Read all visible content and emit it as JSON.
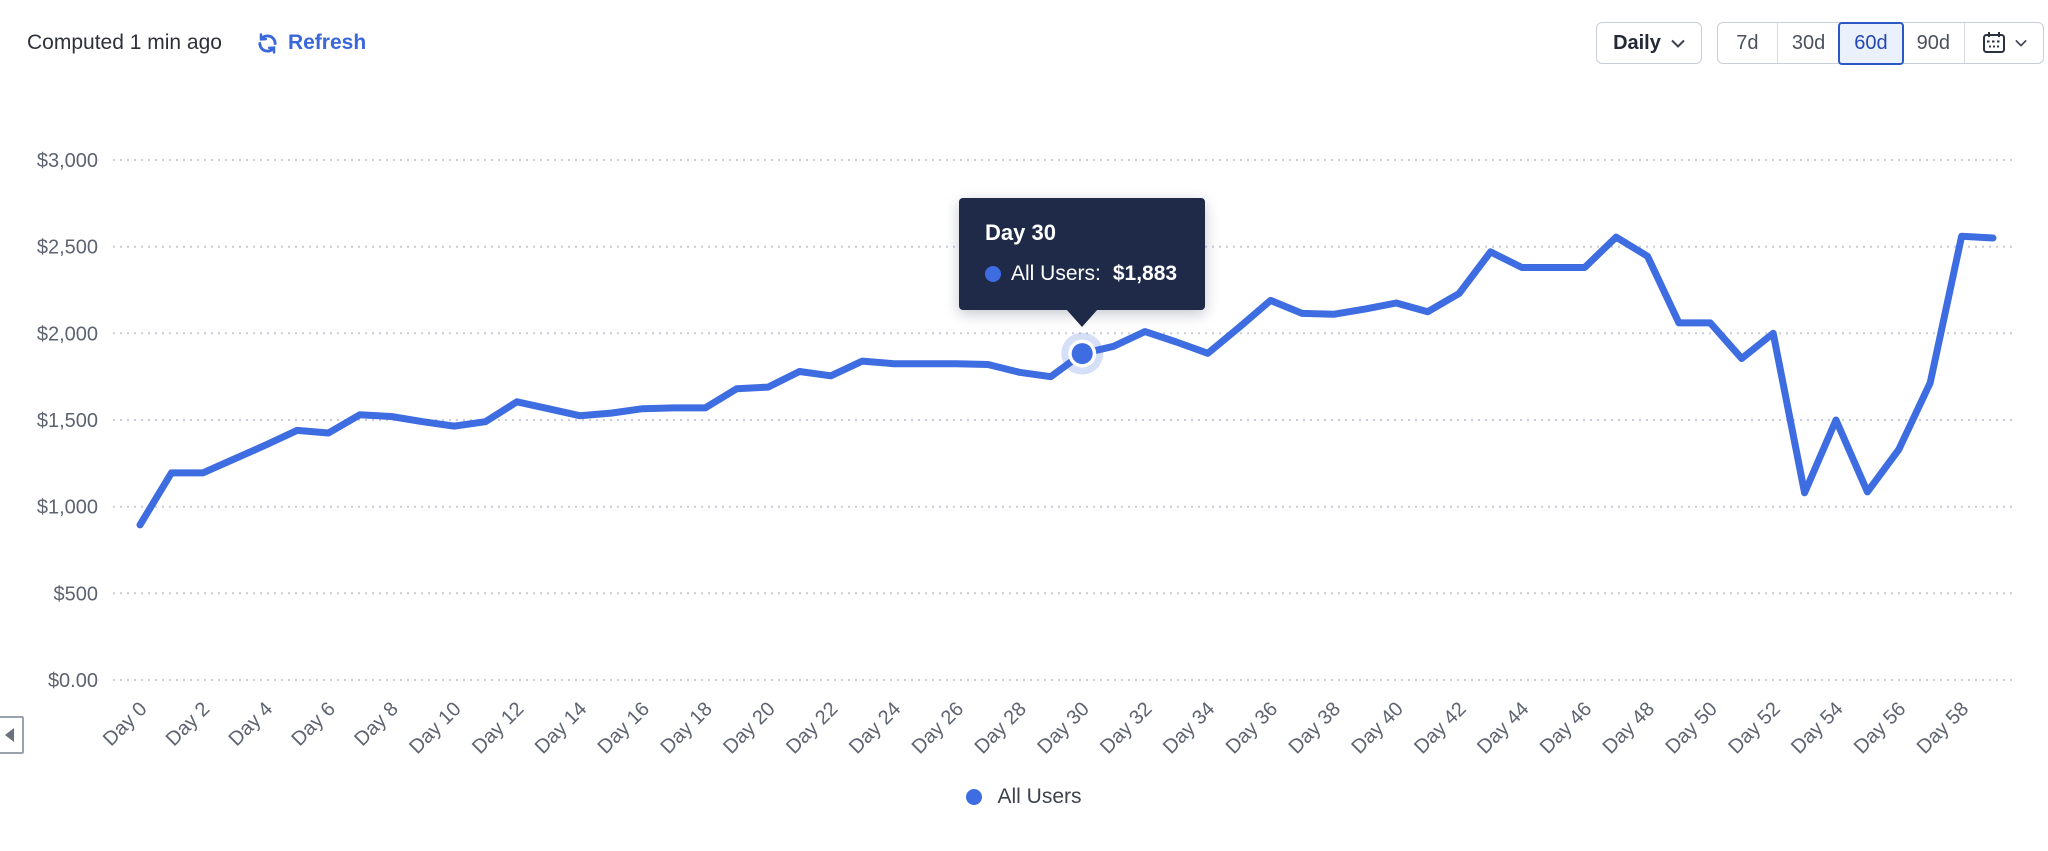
{
  "header": {
    "computed_text": "Computed 1 min ago",
    "refresh_label": "Refresh",
    "granularity_label": "Daily",
    "ranges": [
      {
        "label": "7d",
        "selected": false
      },
      {
        "label": "30d",
        "selected": false
      },
      {
        "label": "60d",
        "selected": true
      },
      {
        "label": "90d",
        "selected": false
      }
    ]
  },
  "tooltip": {
    "title": "Day 30",
    "series_label": "All Users:",
    "value": "$1,883"
  },
  "legend": {
    "label": "All Users"
  },
  "colors": {
    "line_blue": "#3e6ce1",
    "link_blue": "#3a67da",
    "tooltip_bg": "#1e2a47",
    "selected_range_border": "#2b58c4",
    "selected_range_bg": "#eaf0fc",
    "grid_gray": "#c8cdd8",
    "axis_text_gray": "#5d6370"
  },
  "chart_data": {
    "type": "line",
    "title": "",
    "xlabel": "",
    "ylabel": "",
    "x_unit": "day",
    "days": [
      0,
      1,
      2,
      3,
      4,
      5,
      6,
      7,
      8,
      9,
      10,
      11,
      12,
      13,
      14,
      15,
      16,
      17,
      18,
      19,
      20,
      21,
      22,
      23,
      24,
      25,
      26,
      27,
      28,
      29,
      30,
      31,
      32,
      33,
      34,
      35,
      36,
      37,
      38,
      39,
      40,
      41,
      42,
      43,
      44,
      45,
      46,
      47,
      48,
      49,
      50,
      51,
      52,
      53,
      54,
      55,
      56,
      57,
      58,
      59
    ],
    "series": [
      {
        "name": "All Users",
        "values": [
          895,
          1195,
          1195,
          1275,
          1355,
          1440,
          1425,
          1530,
          1520,
          1490,
          1465,
          1490,
          1605,
          1565,
          1525,
          1540,
          1565,
          1570,
          1570,
          1680,
          1690,
          1780,
          1755,
          1840,
          1825,
          1825,
          1825,
          1820,
          1775,
          1750,
          1883,
          1925,
          2010,
          1950,
          1885,
          2035,
          2190,
          2115,
          2110,
          2140,
          2175,
          2125,
          2230,
          2470,
          2380,
          2380,
          2380,
          2555,
          2445,
          2060,
          2060,
          1855,
          2000,
          1080,
          1500,
          1085,
          1330,
          1715,
          2560,
          2550
        ]
      }
    ],
    "ylim": [
      0,
      3000
    ],
    "yticks": [
      {
        "label": "$0.00",
        "value": 0
      },
      {
        "label": "$500",
        "value": 500
      },
      {
        "label": "$1,000",
        "value": 1000
      },
      {
        "label": "$1,500",
        "value": 1500
      },
      {
        "label": "$2,000",
        "value": 2000
      },
      {
        "label": "$2,500",
        "value": 2500
      },
      {
        "label": "$3,000",
        "value": 3000
      }
    ],
    "xtick_step": 2,
    "xtick_labels": [
      "Day 0",
      "Day 2",
      "Day 4",
      "Day 6",
      "Day 8",
      "Day 10",
      "Day 12",
      "Day 14",
      "Day 16",
      "Day 18",
      "Day 20",
      "Day 22",
      "Day 24",
      "Day 26",
      "Day 28",
      "Day 30",
      "Day 32",
      "Day 34",
      "Day 36",
      "Day 38",
      "Day 40",
      "Day 42",
      "Day 44",
      "Day 46",
      "Day 48",
      "Day 50",
      "Day 52",
      "Day 54",
      "Day 56",
      "Day 58"
    ],
    "grid": "horizontal-dotted",
    "legend_position": "bottom",
    "highlight": {
      "day": 30,
      "value": 1883
    }
  }
}
